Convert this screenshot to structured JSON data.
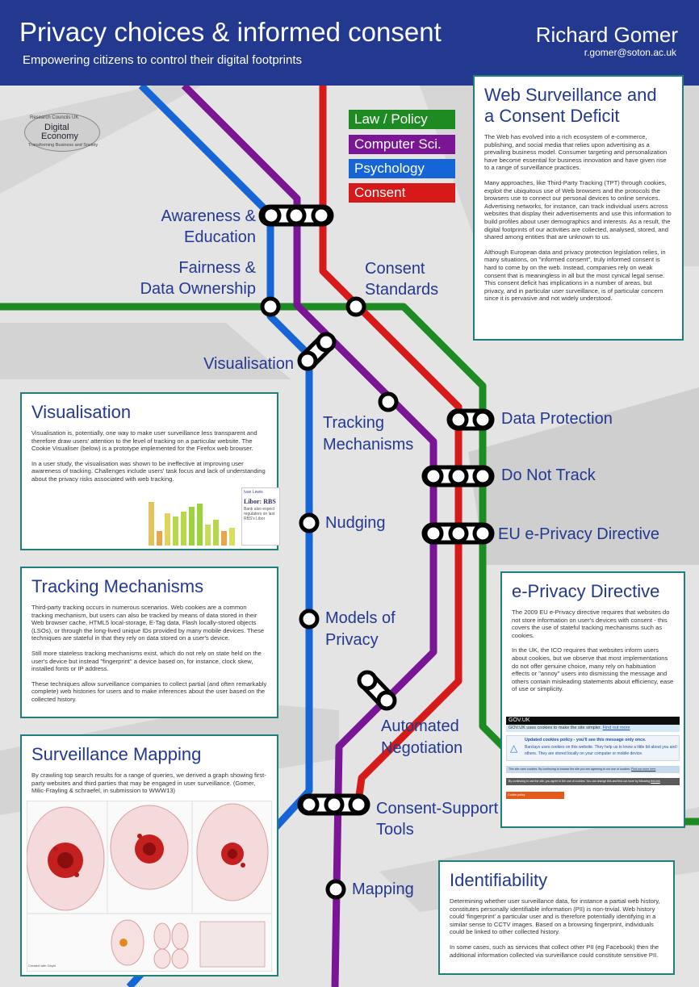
{
  "header": {
    "title": "Privacy choices & informed consent",
    "subtitle": "Empowering citizens to control their digital footprints",
    "author": "Richard Gomer",
    "email": "r.gomer@soton.ac.uk"
  },
  "logo": {
    "top": "Research Councils UK",
    "line1": "Digital",
    "line2": "Economy",
    "bottom": "Transforming Business and Society"
  },
  "legend": [
    {
      "label": "Law / Policy",
      "color": "#1e8a22"
    },
    {
      "label": "Computer Sci.",
      "color": "#7a1596"
    },
    {
      "label": "Psychology",
      "color": "#1565d6"
    },
    {
      "label": "Consent",
      "color": "#d61a1a"
    }
  ],
  "stations": {
    "awareness": "Awareness &",
    "education": "Education",
    "fairness": "Fairness &",
    "data_ownership": "Data Ownership",
    "consent_std1": "Consent",
    "consent_std2": "Standards",
    "visualisation": "Visualisation",
    "tracking1": "Tracking",
    "tracking2": "Mechanisms",
    "data_protection": "Data Protection",
    "do_not_track": "Do Not Track",
    "eu_eprivacy": "EU e-Privacy Directive",
    "nudging": "Nudging",
    "models1": "Models of",
    "models2": "Privacy",
    "automated1": "Automated",
    "automated2": "Negotiation",
    "consent_support1": "Consent-Support",
    "consent_support2": "Tools",
    "mapping": "Mapping"
  },
  "panels": {
    "surveillance": {
      "title1": "Web Surveillance and",
      "title2": "a Consent Deficit",
      "p1": "The Web has evolved into a rich ecosystem of e-commerce, publishing, and social media that relies upon advertising as a prevailing business model. Consumer targeting and personalization have become essential for business innovation and have given rise to a range of surveillance practices.",
      "p2": "Many approaches, like Third-Party Tracking (TPT) through cookies, exploit the ubiquitous use of Web browsers and the protocols the browsers use to connect our personal devices to online services. Advertising networks, for instance, can track individual users across websites that display their advertisements and use this information to build profiles about user demographics and interests. As a result, the digital footprints of our activities are collected, analysed, stored, and shared among entities that are unknown to us.",
      "p3": "Although European data and privacy protection legislation relies, in many situations, on \"informed consent\", truly informed consent is hard to come by on the web. Instead, companies rely on weak consent that is meaningless in all but the most cynical legal sense. This consent deficit has implications in a number of areas, but privacy, and in particular user surveillance, is of particular concern since it is pervasive and not widely understood."
    },
    "visualisation": {
      "title": "Visualisation",
      "p1": "Visualisation is, potentially, one way to make user surveillance less transparent and therefore draw users' attention to the level of tracking on a particular website. The Cookie Visualiser (below) is a prototype implemented for the Firefox web browser.",
      "p2": "In a user study, the visualisation was shown to be ineffective at improving user awareness of tracking. Challenges include users' task focus and lack of understanding about the privacy risks associated with web tracking.",
      "thumb1": "Ivan Lewis",
      "thumb2": "Libor: RBS",
      "thumb3": "Bank also expect",
      "thumb4": "regulators on last",
      "thumb5": "RBS's Libor"
    },
    "tracking": {
      "title": "Tracking Mechanisms",
      "p1": "Third-party tracking occurs in numerous scenarios. Web cookies are a common tracking mechanism, but users can also be tracked by means of data stored in their Web browser cache, HTML5 local-storage, E-Tag data, Flash locally-stored objects (LSOs), or through the long-lived unique IDs provided by many mobile devices. These techniques are stateful in that they rely on data stored on a user's device.",
      "p2": "Still more stateless tracking mechanisms exist, which do not rely on state held on the user's device but instead \"fingerprint\" a device based on, for instance, clock skew, installed fonts or IP address.",
      "p3": "These techniques allow surveillance companies to collect partial (and often remarkably complete) web histories for users and to make inferences about the user based on the collected history."
    },
    "mapping": {
      "title": "Surveillance Mapping",
      "p1": "By crawling top search results for a range of queries, we derived a graph showing first-party websites and third parties that may be engaged in user surveillance. (Gomer, Milic-Frayling & schraefel, in submission to WWW13)",
      "caption": "Created with Gephi"
    },
    "eprivacy": {
      "title": "e-Privacy Directive",
      "p1": "The 2009 EU e-Privacy directive requires that websites do not store information on user's devices with consent - this covers the use of stateful tracking mechanisms such as cookies.",
      "p2": "In the UK, the ICO requires that websites inform users about cookies, but we observe that most implementations do not offer genuine choice, many rely on habituation effects or \"annoy\" users into dismissing the message and others contain misleading statements about efficiency, ease of use or simplicity.",
      "banner1": "GOV.UK",
      "banner2": "GOV.UK uses cookies to make the site simpler.",
      "banner2_link": "Find out more",
      "banner3a": "Updated cookies policy - you'll see this message only once.",
      "banner3b": "Barclays uses cookies on this website. They help us to know a little bit about you and how you use our website,",
      "banner3c": "others. They are stored locally on your computer or mobile device.",
      "banner4": "This site uses cookies. By continuing to browse the site you are agreeing to our use of cookies.",
      "banner4_link": "Find out more here",
      "banner5": "By continuing to use the site, you agree to the use of cookies. You can change this and find out more by following",
      "banner5_link": "this link",
      "banner6": "Cookie policy"
    },
    "identifiability": {
      "title": "Identifiability",
      "p1": "Determining whether user surveillance data, for instance a partial web history, constitutes personally identifiable information (PII) is non-trivial. Web history could 'fingerprint' a particular user and is therefore potentially identifying in a similar sense to CCTV images. Based on a browsing fingerprint, individuals could be linked to other collected history.",
      "p2": "In some cases, such as services that collect other PII (eg Facebook) then the additional information collected via surveillance could constitute sensitive PII."
    }
  }
}
